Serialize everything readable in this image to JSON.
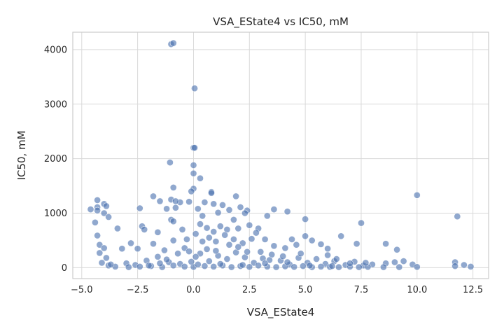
{
  "chart_data": {
    "type": "scatter",
    "title": "VSA_EState4 vs IC50, mM",
    "xlabel": "VSA_EState4",
    "ylabel": "IC50, mM",
    "xlim": [
      -5.4,
      13.2
    ],
    "ylim": [
      -200,
      4320
    ],
    "xticks": [
      -5.0,
      -2.5,
      0.0,
      2.5,
      5.0,
      7.5,
      10.0,
      12.5
    ],
    "xtick_labels": [
      "−5.0",
      "−2.5",
      "0.0",
      "2.5",
      "5.0",
      "7.5",
      "10.0",
      "12.5"
    ],
    "yticks": [
      0,
      1000,
      2000,
      3000,
      4000
    ],
    "ytick_labels": [
      "0",
      "1000",
      "2000",
      "3000",
      "4000"
    ],
    "grid": true,
    "point_color": "#4c72b0",
    "points": [
      [
        -1.0,
        4100
      ],
      [
        -0.9,
        4120
      ],
      [
        0.05,
        3290
      ],
      [
        0.0,
        2200
      ],
      [
        0.05,
        2200
      ],
      [
        -1.05,
        1930
      ],
      [
        0.0,
        1880
      ],
      [
        0.0,
        1730
      ],
      [
        0.3,
        1640
      ],
      [
        0.0,
        1450
      ],
      [
        -0.9,
        1470
      ],
      [
        -0.1,
        1400
      ],
      [
        0.8,
        1390
      ],
      [
        0.8,
        1370
      ],
      [
        1.9,
        1310
      ],
      [
        10.0,
        1330
      ],
      [
        -1.8,
        1310
      ],
      [
        -1.0,
        1250
      ],
      [
        -1.5,
        1220
      ],
      [
        -0.6,
        1200
      ],
      [
        -0.2,
        1210
      ],
      [
        0.5,
        1200
      ],
      [
        0.9,
        1170
      ],
      [
        1.3,
        1150
      ],
      [
        -4.3,
        1240
      ],
      [
        -4.0,
        1170
      ],
      [
        -3.9,
        1130
      ],
      [
        -4.3,
        1110
      ],
      [
        -4.6,
        1070
      ],
      [
        -4.3,
        1050
      ],
      [
        -4.0,
        1000
      ],
      [
        -2.4,
        1090
      ],
      [
        -1.2,
        1080
      ],
      [
        -0.8,
        1100
      ],
      [
        0.2,
        1080
      ],
      [
        1.6,
        1060
      ],
      [
        2.1,
        1110
      ],
      [
        2.4,
        1050
      ],
      [
        3.6,
        1070
      ],
      [
        4.2,
        1030
      ],
      [
        -1.0,
        880
      ],
      [
        -0.9,
        850
      ],
      [
        -4.4,
        830
      ],
      [
        -3.8,
        930
      ],
      [
        -3.4,
        720
      ],
      [
        -2.3,
        760
      ],
      [
        -2.2,
        700
      ],
      [
        -1.6,
        650
      ],
      [
        -0.5,
        700
      ],
      [
        0.3,
        800
      ],
      [
        0.6,
        730
      ],
      [
        1.2,
        760
      ],
      [
        1.5,
        700
      ],
      [
        2.0,
        720
      ],
      [
        2.5,
        780
      ],
      [
        2.9,
        720
      ],
      [
        3.3,
        950
      ],
      [
        5.0,
        890
      ],
      [
        7.5,
        820
      ],
      [
        11.8,
        940
      ],
      [
        -4.3,
        590
      ],
      [
        -4.2,
        420
      ],
      [
        -4.0,
        360
      ],
      [
        -4.2,
        270
      ],
      [
        -3.9,
        180
      ],
      [
        -3.2,
        350
      ],
      [
        -2.8,
        450
      ],
      [
        -2.5,
        350
      ],
      [
        -1.8,
        440
      ],
      [
        -1.3,
        320
      ],
      [
        -0.9,
        500
      ],
      [
        -0.4,
        360
      ],
      [
        0.1,
        620
      ],
      [
        0.4,
        480
      ],
      [
        0.7,
        550
      ],
      [
        1.0,
        480
      ],
      [
        1.4,
        600
      ],
      [
        1.8,
        520
      ],
      [
        2.2,
        450
      ],
      [
        2.6,
        530
      ],
      [
        3.2,
        520
      ],
      [
        3.6,
        400
      ],
      [
        4.1,
        360
      ],
      [
        4.4,
        520
      ],
      [
        4.6,
        420
      ],
      [
        5.0,
        580
      ],
      [
        5.3,
        500
      ],
      [
        5.7,
        430
      ],
      [
        6.0,
        350
      ],
      [
        6.6,
        580
      ],
      [
        7.3,
        440
      ],
      [
        8.6,
        440
      ],
      [
        9.1,
        330
      ],
      [
        -3.0,
        80
      ],
      [
        -2.6,
        50
      ],
      [
        -2.1,
        130
      ],
      [
        -1.6,
        200
      ],
      [
        -1.1,
        100
      ],
      [
        -0.6,
        70
      ],
      [
        -0.2,
        300
      ],
      [
        0.3,
        260
      ],
      [
        0.7,
        120
      ],
      [
        1.1,
        220
      ],
      [
        1.5,
        160
      ],
      [
        1.9,
        280
      ],
      [
        2.3,
        190
      ],
      [
        2.7,
        90
      ],
      [
        3.1,
        170
      ],
      [
        3.5,
        240
      ],
      [
        3.9,
        130
      ],
      [
        4.3,
        60
      ],
      [
        4.7,
        180
      ],
      [
        5.1,
        90
      ],
      [
        5.5,
        160
      ],
      [
        5.9,
        70
      ],
      [
        6.3,
        120
      ],
      [
        6.8,
        50
      ],
      [
        7.2,
        110
      ],
      [
        7.6,
        40
      ],
      [
        8.0,
        60
      ],
      [
        8.6,
        80
      ],
      [
        9.0,
        100
      ],
      [
        9.4,
        120
      ],
      [
        9.8,
        60
      ],
      [
        11.7,
        100
      ],
      [
        11.7,
        30
      ],
      [
        12.1,
        50
      ],
      [
        12.4,
        20
      ],
      [
        -4.1,
        90
      ],
      [
        -3.8,
        40
      ],
      [
        -3.5,
        20
      ],
      [
        -2.9,
        10
      ],
      [
        -2.4,
        20
      ],
      [
        -1.9,
        30
      ],
      [
        -1.4,
        10
      ],
      [
        -0.9,
        40
      ],
      [
        -0.4,
        20
      ],
      [
        0.0,
        15
      ],
      [
        0.2,
        60
      ],
      [
        0.5,
        30
      ],
      [
        0.9,
        20
      ],
      [
        1.3,
        40
      ],
      [
        1.7,
        10
      ],
      [
        2.1,
        30
      ],
      [
        2.5,
        15
      ],
      [
        2.9,
        40
      ],
      [
        3.3,
        20
      ],
      [
        3.7,
        10
      ],
      [
        4.1,
        25
      ],
      [
        4.5,
        15
      ],
      [
        4.9,
        30
      ],
      [
        5.3,
        10
      ],
      [
        5.7,
        20
      ],
      [
        6.1,
        15
      ],
      [
        6.5,
        10
      ],
      [
        7.0,
        20
      ],
      [
        7.4,
        10
      ],
      [
        7.8,
        15
      ],
      [
        8.5,
        10
      ],
      [
        9.2,
        10
      ],
      [
        10.0,
        15
      ],
      [
        -3.7,
        60
      ],
      [
        -1.2,
        150
      ],
      [
        0.1,
        200
      ],
      [
        1.0,
        310
      ],
      [
        2.0,
        380
      ],
      [
        3.0,
        290
      ],
      [
        4.0,
        210
      ],
      [
        6.0,
        230
      ],
      [
        7.7,
        90
      ],
      [
        -0.7,
        260
      ],
      [
        0.6,
        340
      ],
      [
        1.6,
        420
      ],
      [
        2.4,
        290
      ],
      [
        3.4,
        140
      ],
      [
        4.8,
        260
      ],
      [
        6.4,
        160
      ],
      [
        -2.0,
        40
      ],
      [
        -1.5,
        80
      ],
      [
        -0.1,
        110
      ],
      [
        1.2,
        70
      ],
      [
        2.2,
        50
      ],
      [
        3.2,
        80
      ],
      [
        4.2,
        100
      ],
      [
        5.2,
        40
      ],
      [
        6.2,
        30
      ],
      [
        7.0,
        80
      ],
      [
        -0.3,
        520
      ],
      [
        0.9,
        660
      ],
      [
        1.8,
        880
      ],
      [
        2.3,
        1000
      ],
      [
        0.4,
        950
      ],
      [
        -0.8,
        1220
      ],
      [
        1.1,
        1010
      ],
      [
        2.8,
        640
      ]
    ]
  }
}
